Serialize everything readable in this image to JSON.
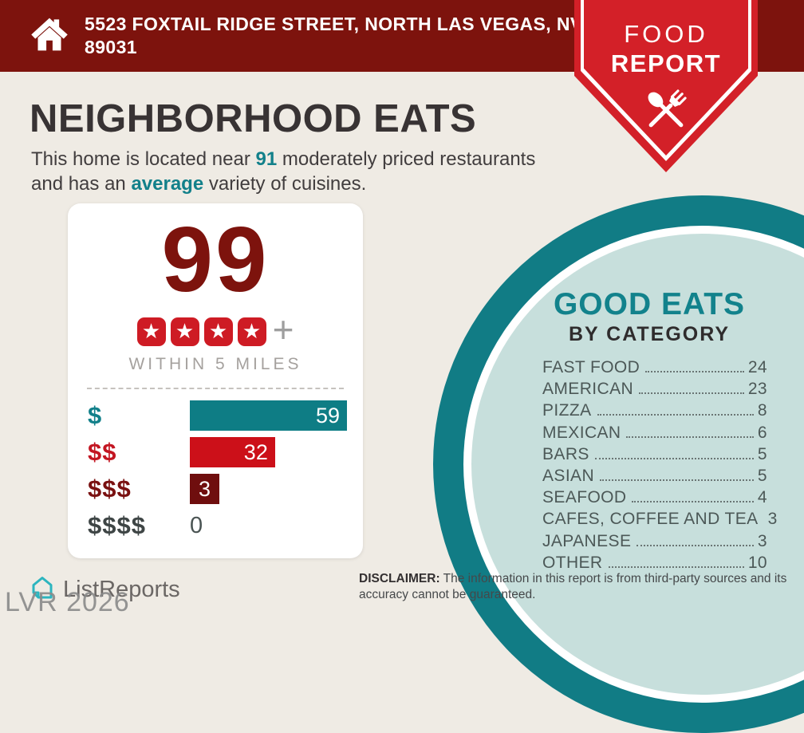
{
  "header": {
    "address_line1": "5523 FOXTAIL RIDGE STREET, NORTH LAS VEGAS, NV",
    "address_line2": "89031"
  },
  "ribbon": {
    "line1": "FOOD",
    "line2": "REPORT"
  },
  "page": {
    "title": "NEIGHBORHOOD EATS"
  },
  "subtitle": {
    "part1": "This home is located near ",
    "highlight1": "91",
    "part2": " moderately priced restaurants and has an ",
    "highlight2": "average",
    "part3": " variety of cuisines."
  },
  "score_card": {
    "count": "99",
    "stars": 4,
    "star_glyph": "★",
    "plus_label": "+",
    "radius_label": "WITHIN 5 MILES"
  },
  "chart_data": [
    {
      "type": "bar",
      "orientation": "horizontal",
      "categories": [
        "$",
        "$$",
        "$$$",
        "$$$$"
      ],
      "values": [
        59,
        32,
        3,
        0
      ],
      "xlim": [
        0,
        59
      ],
      "bar_colors": [
        "#0E7D85",
        "#CC1019",
        "#6F0E0E",
        null
      ],
      "label_colors": [
        "#12808A",
        "#C31622",
        "#7A1111",
        "#3E4545"
      ],
      "legend": "restaurant counts by price tier within 5 miles",
      "grid": false
    },
    {
      "type": "table",
      "title": "GOOD EATS",
      "subtitle": "BY CATEGORY",
      "rows": [
        [
          "FAST FOOD",
          24
        ],
        [
          "AMERICAN",
          23
        ],
        [
          "PIZZA",
          8
        ],
        [
          "MEXICAN",
          6
        ],
        [
          "BARS",
          5
        ],
        [
          "ASIAN",
          5
        ],
        [
          "SEAFOOD",
          4
        ],
        [
          "CAFES, COFFEE AND TEA",
          3
        ],
        [
          "JAPANESE",
          3
        ],
        [
          "OTHER",
          10
        ]
      ]
    }
  ],
  "footer": {
    "brand": "ListReports",
    "watermark": "LVR 2026",
    "disclaimer_label": "DISCLAIMER:",
    "disclaimer_text": " The information in this report is from third-party sources and its accuracy cannot be guaranteed."
  },
  "icons": {
    "house": "house-icon",
    "utensils": "crossed-spoon-and-fork-icon",
    "star": "star-icon",
    "logo": "listreports-logo-icon"
  },
  "colors": {
    "header_red": "#7D130D",
    "ribbon_red": "#D32028",
    "teal": "#11808A",
    "light_teal": "#C7DFDC",
    "background": "#EFEBE4",
    "maroon": "#7D130D",
    "bar_teal": "#0E7D85",
    "bar_red": "#CC1019",
    "bar_dark_red": "#6F0E0E",
    "logo_teal": "#2CB5BF"
  }
}
